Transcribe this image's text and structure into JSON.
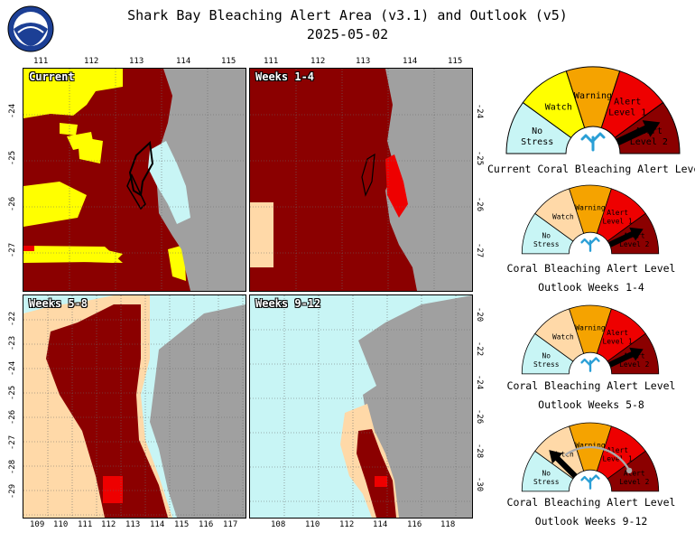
{
  "header": {
    "title": "Shark Bay Bleaching Alert Area (v3.1) and Outlook (v5)",
    "date": "2025-05-02",
    "logo_text": "NOAA"
  },
  "colors": {
    "no_stress": "#c8f5f5",
    "watch_light": "#ffff00",
    "watch_outlook": "#ffd9a8",
    "warning": "#f5a300",
    "alert_level_1": "#ee0000",
    "alert_level_2": "#8b0000",
    "land": "#a0a0a0",
    "grid": "#6b6b6b"
  },
  "panels": [
    {
      "label": "Current",
      "top_ticks": [
        "111",
        "112",
        "113",
        "114",
        "115"
      ],
      "left_ticks": [
        "-24",
        "-25",
        "-26",
        "-27"
      ]
    },
    {
      "label": "Weeks 1-4",
      "top_ticks": [
        "111",
        "112",
        "113",
        "114",
        "115"
      ],
      "right_ticks": [
        "-24",
        "-25",
        "-26",
        "-27"
      ]
    },
    {
      "label": "Weeks 5-8",
      "bottom_ticks": [
        "109",
        "110",
        "111",
        "112",
        "113",
        "114",
        "115",
        "116",
        "117"
      ],
      "left_ticks": [
        "-22",
        "-23",
        "-24",
        "-25",
        "-26",
        "-27",
        "-28",
        "-29"
      ]
    },
    {
      "label": "Weeks 9-12",
      "bottom_ticks": [
        "108",
        "110",
        "112",
        "114",
        "116",
        "118"
      ],
      "right_ticks": [
        "-20",
        "-22",
        "-24",
        "-26",
        "-28",
        "-30"
      ]
    }
  ],
  "gauges": [
    {
      "line1": "Current Coral Bleaching Alert Level",
      "line2": "",
      "level": "Alert Level 2",
      "watch_style": "yellow",
      "arrow": "alert2"
    },
    {
      "line1": "Coral Bleaching Alert Level",
      "line2": "Outlook Weeks 1-4",
      "level": "Alert Level 2",
      "watch_style": "tan",
      "arrow": "alert2"
    },
    {
      "line1": "Coral Bleaching Alert Level",
      "line2": "Outlook Weeks 5-8",
      "level": "Alert Level 2",
      "watch_style": "tan",
      "arrow": "alert2"
    },
    {
      "line1": "Coral Bleaching Alert Level",
      "line2": "Outlook Weeks 9-12",
      "level": "Watch",
      "watch_style": "tan",
      "arrow": "watch"
    }
  ],
  "segment_labels": {
    "no_stress": [
      "No",
      "Stress"
    ],
    "watch": [
      "Watch"
    ],
    "warning": [
      "Warning"
    ],
    "alert_level_1": [
      "Alert",
      "Level 1"
    ],
    "alert_level_2": [
      "Alert",
      "Level 2"
    ]
  }
}
